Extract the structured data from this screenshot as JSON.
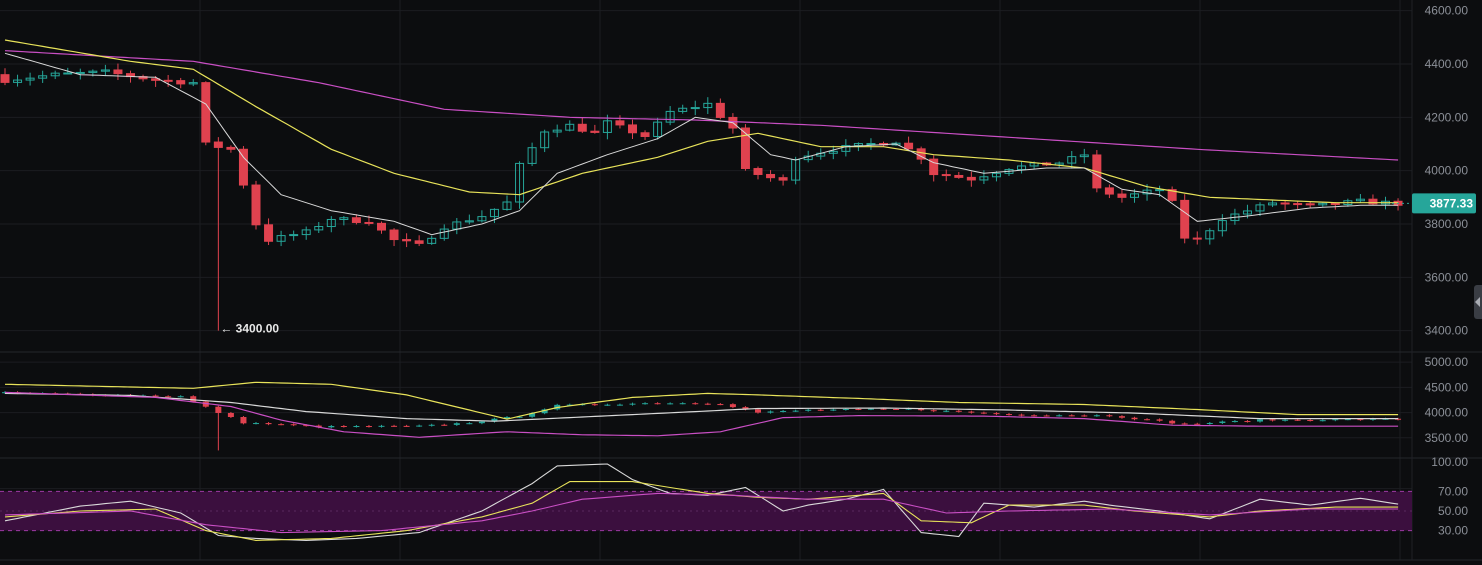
{
  "colors": {
    "background": "#0c0d0f",
    "grid": "#1b1d21",
    "up": "#26a69a",
    "down": "#e0424f",
    "ma_fast": "#d9d9d9",
    "ma_mid": "#e8e35a",
    "ma_slow": "#c94fc4",
    "price_tag": "#26a69a",
    "rsi_band": "#3b0f3e",
    "rsi_band_border": "#9c3aa3"
  },
  "chart_data": [
    {
      "type": "candlestick",
      "panel": "price",
      "ylim": [
        3320,
        4640
      ],
      "y_ticks": [
        3400,
        3600,
        3800,
        4000,
        4200,
        4400,
        4600
      ],
      "y_tick_labels": [
        "3400.00",
        "3600.00",
        "3800.00",
        "4000.00",
        "4200.00",
        "4400.00",
        "4600.00"
      ],
      "close_anchors": [
        [
          0,
          4340
        ],
        [
          4,
          4360
        ],
        [
          8,
          4370
        ],
        [
          12,
          4340
        ],
        [
          15,
          4330
        ],
        [
          16,
          4100
        ],
        [
          18,
          4080
        ],
        [
          19,
          3950
        ],
        [
          20,
          3800
        ],
        [
          21,
          3740
        ],
        [
          24,
          3770
        ],
        [
          26,
          3820
        ],
        [
          29,
          3810
        ],
        [
          31,
          3740
        ],
        [
          33,
          3720
        ],
        [
          35,
          3790
        ],
        [
          38,
          3830
        ],
        [
          40,
          3880
        ],
        [
          41,
          4020
        ],
        [
          43,
          4150
        ],
        [
          45,
          4170
        ],
        [
          47,
          4140
        ],
        [
          48,
          4180
        ],
        [
          51,
          4130
        ],
        [
          53,
          4220
        ],
        [
          56,
          4250
        ],
        [
          58,
          4160
        ],
        [
          59,
          4000
        ],
        [
          62,
          3960
        ],
        [
          63,
          4050
        ],
        [
          66,
          4080
        ],
        [
          69,
          4100
        ],
        [
          71,
          4110
        ],
        [
          73,
          4050
        ],
        [
          74,
          3990
        ],
        [
          77,
          3970
        ],
        [
          80,
          4010
        ],
        [
          84,
          4030
        ],
        [
          86,
          4060
        ],
        [
          87,
          3930
        ],
        [
          89,
          3900
        ],
        [
          92,
          3930
        ],
        [
          93,
          3880
        ],
        [
          94,
          3750
        ],
        [
          95,
          3740
        ],
        [
          97,
          3820
        ],
        [
          101,
          3880
        ],
        [
          104,
          3865
        ],
        [
          108,
          3885
        ],
        [
          111,
          3877
        ]
      ],
      "spike_low": [
        17,
        3400
      ],
      "ma_fast_anchors": [
        [
          0,
          4440
        ],
        [
          6,
          4360
        ],
        [
          12,
          4350
        ],
        [
          16,
          4250
        ],
        [
          19,
          4050
        ],
        [
          22,
          3910
        ],
        [
          26,
          3850
        ],
        [
          31,
          3810
        ],
        [
          34,
          3760
        ],
        [
          38,
          3800
        ],
        [
          41,
          3850
        ],
        [
          44,
          3990
        ],
        [
          48,
          4060
        ],
        [
          52,
          4120
        ],
        [
          55,
          4200
        ],
        [
          58,
          4180
        ],
        [
          61,
          4060
        ],
        [
          63,
          4040
        ],
        [
          67,
          4090
        ],
        [
          71,
          4100
        ],
        [
          74,
          4030
        ],
        [
          78,
          3990
        ],
        [
          83,
          4010
        ],
        [
          86,
          4010
        ],
        [
          89,
          3930
        ],
        [
          92,
          3910
        ],
        [
          95,
          3810
        ],
        [
          99,
          3830
        ],
        [
          104,
          3860
        ],
        [
          108,
          3870
        ],
        [
          111,
          3870
        ]
      ],
      "ma_mid_anchors": [
        [
          0,
          4490
        ],
        [
          10,
          4410
        ],
        [
          15,
          4380
        ],
        [
          20,
          4240
        ],
        [
          26,
          4080
        ],
        [
          31,
          3990
        ],
        [
          37,
          3920
        ],
        [
          41,
          3910
        ],
        [
          46,
          3990
        ],
        [
          52,
          4050
        ],
        [
          56,
          4110
        ],
        [
          60,
          4140
        ],
        [
          65,
          4090
        ],
        [
          70,
          4090
        ],
        [
          74,
          4060
        ],
        [
          80,
          4040
        ],
        [
          86,
          4010
        ],
        [
          91,
          3940
        ],
        [
          96,
          3900
        ],
        [
          101,
          3890
        ],
        [
          106,
          3880
        ],
        [
          111,
          3880
        ]
      ],
      "ma_slow_anchors": [
        [
          0,
          4450
        ],
        [
          15,
          4410
        ],
        [
          25,
          4330
        ],
        [
          35,
          4230
        ],
        [
          45,
          4200
        ],
        [
          55,
          4190
        ],
        [
          65,
          4170
        ],
        [
          75,
          4140
        ],
        [
          85,
          4110
        ],
        [
          95,
          4080
        ],
        [
          105,
          4055
        ],
        [
          111,
          4040
        ]
      ]
    },
    {
      "type": "line",
      "panel": "overview",
      "ylim": [
        3100,
        5200
      ],
      "y_ticks": [
        3500,
        4000,
        4500,
        5000
      ],
      "y_tick_labels": [
        "3500.00",
        "4000.00",
        "4500.00",
        "5000.00"
      ],
      "series": [
        {
          "color_key": "ma_mid",
          "points": [
            [
              0,
              4560
            ],
            [
              15,
              4480
            ],
            [
              20,
              4600
            ],
            [
              26,
              4560
            ],
            [
              32,
              4350
            ],
            [
              37,
              4050
            ],
            [
              40,
              3870
            ],
            [
              44,
              4100
            ],
            [
              50,
              4300
            ],
            [
              56,
              4380
            ],
            [
              60,
              4350
            ],
            [
              68,
              4280
            ],
            [
              76,
              4200
            ],
            [
              86,
              4160
            ],
            [
              95,
              4060
            ],
            [
              103,
              3960
            ],
            [
              111,
              3960
            ]
          ]
        },
        {
          "color_key": "ma_fast",
          "points": [
            [
              0,
              4380
            ],
            [
              10,
              4340
            ],
            [
              18,
              4200
            ],
            [
              24,
              4020
            ],
            [
              32,
              3880
            ],
            [
              39,
              3830
            ],
            [
              45,
              3900
            ],
            [
              55,
              4020
            ],
            [
              60,
              4080
            ],
            [
              70,
              4090
            ],
            [
              80,
              4050
            ],
            [
              90,
              3990
            ],
            [
              100,
              3880
            ],
            [
              111,
              3880
            ]
          ]
        },
        {
          "color_key": "ma_slow",
          "points": [
            [
              0,
              4400
            ],
            [
              12,
              4300
            ],
            [
              18,
              4120
            ],
            [
              22,
              3850
            ],
            [
              27,
              3620
            ],
            [
              33,
              3510
            ],
            [
              40,
              3620
            ],
            [
              46,
              3560
            ],
            [
              52,
              3540
            ],
            [
              57,
              3620
            ],
            [
              62,
              3900
            ],
            [
              68,
              3940
            ],
            [
              78,
              3930
            ],
            [
              86,
              3880
            ],
            [
              93,
              3750
            ],
            [
              100,
              3730
            ],
            [
              111,
              3730
            ]
          ]
        }
      ],
      "candle_anchors": [
        [
          0,
          4390
        ],
        [
          14,
          4320
        ],
        [
          17,
          4000
        ],
        [
          19,
          3800
        ],
        [
          25,
          3720
        ],
        [
          33,
          3730
        ],
        [
          37,
          3800
        ],
        [
          41,
          3930
        ],
        [
          44,
          4140
        ],
        [
          52,
          4190
        ],
        [
          57,
          4180
        ],
        [
          60,
          4000
        ],
        [
          64,
          4050
        ],
        [
          72,
          4070
        ],
        [
          80,
          3960
        ],
        [
          88,
          3940
        ],
        [
          94,
          3770
        ],
        [
          100,
          3850
        ],
        [
          111,
          3870
        ]
      ]
    },
    {
      "type": "line",
      "panel": "rsi",
      "ylim": [
        0,
        100
      ],
      "y_ticks": [
        30,
        50,
        70,
        100
      ],
      "y_tick_labels": [
        "30.00",
        "50.00",
        "70.00",
        "100.00"
      ],
      "band": [
        30,
        70
      ],
      "series": [
        {
          "color_key": "ma_fast",
          "points": [
            [
              0,
              40
            ],
            [
              6,
              55
            ],
            [
              10,
              60
            ],
            [
              14,
              48
            ],
            [
              17,
              25
            ],
            [
              20,
              22
            ],
            [
              24,
              20
            ],
            [
              28,
              22
            ],
            [
              33,
              28
            ],
            [
              38,
              50
            ],
            [
              42,
              78
            ],
            [
              44,
              96
            ],
            [
              48,
              98
            ],
            [
              50,
              82
            ],
            [
              53,
              68
            ],
            [
              56,
              66
            ],
            [
              59,
              74
            ],
            [
              62,
              50
            ],
            [
              64,
              56
            ],
            [
              67,
              62
            ],
            [
              70,
              72
            ],
            [
              73,
              28
            ],
            [
              76,
              24
            ],
            [
              78,
              58
            ],
            [
              82,
              54
            ],
            [
              86,
              60
            ],
            [
              88,
              56
            ],
            [
              92,
              50
            ],
            [
              96,
              42
            ],
            [
              100,
              62
            ],
            [
              104,
              56
            ],
            [
              108,
              63
            ],
            [
              111,
              57
            ]
          ]
        },
        {
          "color_key": "ma_mid",
          "points": [
            [
              0,
              44
            ],
            [
              6,
              50
            ],
            [
              12,
              52
            ],
            [
              16,
              30
            ],
            [
              20,
              20
            ],
            [
              26,
              22
            ],
            [
              32,
              30
            ],
            [
              38,
              44
            ],
            [
              42,
              58
            ],
            [
              45,
              80
            ],
            [
              50,
              80
            ],
            [
              56,
              68
            ],
            [
              60,
              64
            ],
            [
              64,
              62
            ],
            [
              70,
              68
            ],
            [
              73,
              40
            ],
            [
              77,
              38
            ],
            [
              80,
              56
            ],
            [
              86,
              56
            ],
            [
              90,
              50
            ],
            [
              96,
              44
            ],
            [
              100,
              50
            ],
            [
              106,
              54
            ],
            [
              111,
              54
            ]
          ]
        },
        {
          "color_key": "ma_slow",
          "points": [
            [
              0,
              46
            ],
            [
              10,
              50
            ],
            [
              16,
              36
            ],
            [
              22,
              28
            ],
            [
              30,
              30
            ],
            [
              38,
              40
            ],
            [
              42,
              50
            ],
            [
              46,
              62
            ],
            [
              52,
              68
            ],
            [
              58,
              66
            ],
            [
              64,
              62
            ],
            [
              70,
              62
            ],
            [
              75,
              48
            ],
            [
              80,
              50
            ],
            [
              88,
              52
            ],
            [
              96,
              46
            ],
            [
              104,
              52
            ],
            [
              111,
              52
            ]
          ]
        }
      ]
    }
  ],
  "price_tag": {
    "label": "3877.33",
    "value": 3877.33
  },
  "annotation": {
    "label": "← 3400.00",
    "value": 3400,
    "candle": 17
  }
}
